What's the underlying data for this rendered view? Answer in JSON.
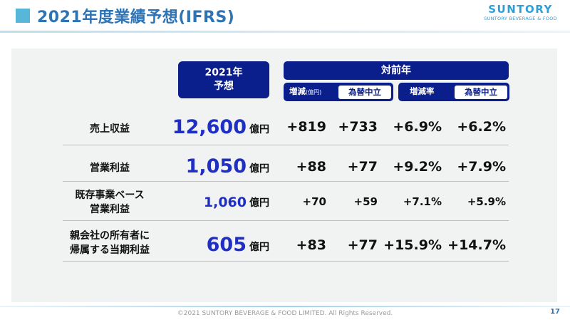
{
  "title": "2021年度業績予想(IFRS)",
  "logo": {
    "main": "SUNTORY",
    "sub": "SUNTORY BEVERAGE & FOOD"
  },
  "header": {
    "forecast_line1": "2021年",
    "forecast_line2": "予想",
    "prev_year": "対前年",
    "increase": "増減",
    "increase_unit": "(億円)",
    "fx_neutral_1": "為替中立",
    "rate": "増減率",
    "fx_neutral_2": "為替中立"
  },
  "rows": [
    {
      "label1": "売上収益",
      "label2": "",
      "value": "12,600",
      "unit": "億円",
      "inc": "+819",
      "inc_fx": "+733",
      "rate": "+6.9%",
      "rate_fx": "+6.2%"
    },
    {
      "label1": "営業利益",
      "label2": "",
      "value": "1,050",
      "unit": "億円",
      "inc": "+88",
      "inc_fx": "+77",
      "rate": "+9.2%",
      "rate_fx": "+7.9%"
    },
    {
      "label1": "既存事業ベース",
      "label2": "営業利益",
      "value": "1,060",
      "unit": "億円",
      "inc": "+70",
      "inc_fx": "+59",
      "rate": "+7.1%",
      "rate_fx": "+5.9%"
    },
    {
      "label1": "親会社の所有者に",
      "label2": "帰属する当期利益",
      "value": "605",
      "unit": "億円",
      "inc": "+83",
      "inc_fx": "+77",
      "rate": "+15.9%",
      "rate_fx": "+14.7%"
    }
  ],
  "footer": {
    "copyright": "©2021 SUNTORY BEVERAGE & FOOD LIMITED. All Rights Reserved.",
    "page": "17"
  }
}
